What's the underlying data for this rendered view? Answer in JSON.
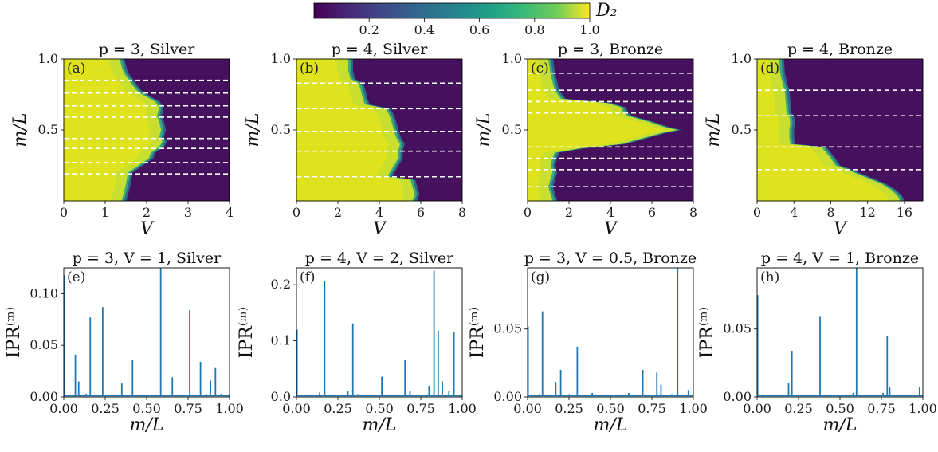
{
  "colorbar": {
    "label": "D₂",
    "ticks": [
      0.2,
      0.4,
      0.6,
      0.8,
      1.0
    ],
    "range": [
      0.0,
      1.0
    ],
    "colormap": "viridis"
  },
  "chart_data": [
    {
      "type": "heatmap",
      "tag": "(a)",
      "title": "p = 3, Silver",
      "xlabel": "V",
      "ylabel": "m/L",
      "xlim": [
        0,
        4
      ],
      "ylim": [
        0,
        1
      ],
      "xticks": [
        0,
        1,
        2,
        3,
        4
      ],
      "yticks": [
        0.5,
        1.0
      ],
      "dashed_lines": [
        0.19,
        0.27,
        0.37,
        0.44,
        0.59,
        0.67,
        0.76,
        0.85
      ],
      "boundary": [
        [
          0,
          1.4
        ],
        [
          0.06,
          1.45
        ],
        [
          0.12,
          1.5
        ],
        [
          0.2,
          1.55
        ],
        [
          0.25,
          1.8
        ],
        [
          0.3,
          2.05
        ],
        [
          0.34,
          2.1
        ],
        [
          0.38,
          2.3
        ],
        [
          0.42,
          2.38
        ],
        [
          0.45,
          2.3
        ],
        [
          0.5,
          2.35
        ],
        [
          0.56,
          2.3
        ],
        [
          0.6,
          2.25
        ],
        [
          0.66,
          2.3
        ],
        [
          0.7,
          2.2
        ],
        [
          0.74,
          1.95
        ],
        [
          0.78,
          1.75
        ],
        [
          0.82,
          1.65
        ],
        [
          0.86,
          1.55
        ],
        [
          0.9,
          1.45
        ],
        [
          0.94,
          1.4
        ],
        [
          1.0,
          1.35
        ]
      ]
    },
    {
      "type": "heatmap",
      "tag": "(b)",
      "title": "p = 4, Silver",
      "xlabel": "V",
      "ylabel": "m/L",
      "xlim": [
        0,
        8
      ],
      "ylim": [
        0,
        1
      ],
      "xticks": [
        0,
        2,
        4,
        6,
        8
      ],
      "yticks": [
        0.5,
        1.0
      ],
      "dashed_lines": [
        0.17,
        0.35,
        0.49,
        0.65,
        0.83
      ],
      "boundary": [
        [
          0,
          5.6
        ],
        [
          0.05,
          5.7
        ],
        [
          0.1,
          5.6
        ],
        [
          0.15,
          5.5
        ],
        [
          0.17,
          4.4
        ],
        [
          0.2,
          4.5
        ],
        [
          0.25,
          4.7
        ],
        [
          0.3,
          4.9
        ],
        [
          0.35,
          4.9
        ],
        [
          0.4,
          5.0
        ],
        [
          0.45,
          4.8
        ],
        [
          0.5,
          4.7
        ],
        [
          0.55,
          4.6
        ],
        [
          0.6,
          4.5
        ],
        [
          0.65,
          4.3
        ],
        [
          0.68,
          3.3
        ],
        [
          0.72,
          3.2
        ],
        [
          0.78,
          3.1
        ],
        [
          0.83,
          3.0
        ],
        [
          0.86,
          2.6
        ],
        [
          0.92,
          2.5
        ],
        [
          1.0,
          2.5
        ]
      ]
    },
    {
      "type": "heatmap",
      "tag": "(c)",
      "title": "p = 3, Bronze",
      "xlabel": "V",
      "ylabel": "m/L",
      "xlim": [
        0,
        8
      ],
      "ylim": [
        0,
        1
      ],
      "xticks": [
        0,
        2,
        4,
        6,
        8
      ],
      "yticks": [
        0.5,
        1.0
      ],
      "dashed_lines": [
        0.1,
        0.22,
        0.3,
        0.38,
        0.62,
        0.7,
        0.78,
        0.9
      ],
      "boundary": [
        [
          0,
          1.2
        ],
        [
          0.05,
          1.1
        ],
        [
          0.1,
          1.0
        ],
        [
          0.15,
          1.1
        ],
        [
          0.2,
          1.2
        ],
        [
          0.25,
          1.1
        ],
        [
          0.3,
          1.2
        ],
        [
          0.34,
          1.3
        ],
        [
          0.37,
          2.5
        ],
        [
          0.4,
          4.5
        ],
        [
          0.44,
          5.5
        ],
        [
          0.48,
          6.5
        ],
        [
          0.5,
          7.2
        ],
        [
          0.52,
          6.6
        ],
        [
          0.56,
          5.8
        ],
        [
          0.6,
          4.8
        ],
        [
          0.63,
          4.6
        ],
        [
          0.66,
          4.5
        ],
        [
          0.69,
          3.8
        ],
        [
          0.72,
          1.6
        ],
        [
          0.78,
          1.3
        ],
        [
          0.84,
          1.2
        ],
        [
          0.9,
          1.1
        ],
        [
          1.0,
          1.0
        ]
      ]
    },
    {
      "type": "heatmap",
      "tag": "(d)",
      "title": "p = 4, Bronze",
      "xlabel": "V",
      "ylabel": "m/L",
      "xlim": [
        0,
        18
      ],
      "ylim": [
        0,
        1
      ],
      "xticks": [
        0,
        4,
        8,
        12,
        16
      ],
      "yticks": [
        0.5,
        1.0
      ],
      "dashed_lines": [
        0.22,
        0.38,
        0.6,
        0.78
      ],
      "boundary": [
        [
          0,
          15.5
        ],
        [
          0.04,
          15.2
        ],
        [
          0.08,
          14.5
        ],
        [
          0.12,
          13.5
        ],
        [
          0.16,
          12
        ],
        [
          0.2,
          10.5
        ],
        [
          0.22,
          9.8
        ],
        [
          0.25,
          8.5
        ],
        [
          0.3,
          8
        ],
        [
          0.34,
          7.5
        ],
        [
          0.38,
          7
        ],
        [
          0.4,
          3.6
        ],
        [
          0.45,
          3.5
        ],
        [
          0.5,
          3.5
        ],
        [
          0.55,
          3.6
        ],
        [
          0.6,
          3.5
        ],
        [
          0.62,
          3.2
        ],
        [
          0.7,
          3.1
        ],
        [
          0.78,
          3.0
        ],
        [
          0.82,
          2.8
        ],
        [
          0.9,
          2.5
        ],
        [
          1.0,
          2.4
        ]
      ]
    },
    {
      "type": "line",
      "tag": "(e)",
      "title": "p = 3, V = 1, Silver",
      "xlabel": "m/L",
      "ylabel": "IPR⁽ᵐ⁾",
      "xlim": [
        0,
        1
      ],
      "ylim": [
        0,
        0.125
      ],
      "xticks": [
        "0.00",
        "0.25",
        "0.50",
        "0.75",
        "1.00"
      ],
      "yticks": [
        "0.00",
        "0.05",
        "0.10"
      ],
      "peaks": [
        [
          0.003,
          0.118
        ],
        [
          0.07,
          0.041
        ],
        [
          0.09,
          0.015
        ],
        [
          0.135,
          0.003
        ],
        [
          0.16,
          0.077
        ],
        [
          0.235,
          0.087
        ],
        [
          0.35,
          0.013
        ],
        [
          0.415,
          0.036
        ],
        [
          0.585,
          0.125
        ],
        [
          0.655,
          0.019
        ],
        [
          0.76,
          0.084
        ],
        [
          0.825,
          0.034
        ],
        [
          0.86,
          0.003
        ],
        [
          0.885,
          0.016
        ],
        [
          0.915,
          0.028
        ],
        [
          0.95,
          0.003
        ]
      ]
    },
    {
      "type": "line",
      "tag": "(f)",
      "title": "p = 4, V = 2, Silver",
      "xlabel": "m/L",
      "ylabel": "IPR⁽ᵐ⁾",
      "xlim": [
        0,
        1
      ],
      "ylim": [
        0,
        0.23
      ],
      "xticks": [
        "0.00",
        "0.25",
        "0.50",
        "0.75",
        "1.00"
      ],
      "yticks": [
        "0.0",
        "0.1",
        "0.2"
      ],
      "peaks": [
        [
          0.003,
          0.12
        ],
        [
          0.14,
          0.008
        ],
        [
          0.17,
          0.207
        ],
        [
          0.31,
          0.01
        ],
        [
          0.34,
          0.131
        ],
        [
          0.37,
          0.005
        ],
        [
          0.515,
          0.036
        ],
        [
          0.655,
          0.066
        ],
        [
          0.685,
          0.01
        ],
        [
          0.8,
          0.02
        ],
        [
          0.83,
          0.225
        ],
        [
          0.855,
          0.118
        ],
        [
          0.88,
          0.028
        ],
        [
          0.92,
          0.01
        ],
        [
          0.95,
          0.116
        ]
      ]
    },
    {
      "type": "line",
      "tag": "(g)",
      "title": "p = 3, V = 0.5, Bronze",
      "xlabel": "m/L",
      "ylabel": "IPR⁽ᵐ⁾",
      "xlim": [
        0,
        1
      ],
      "ylim": [
        0,
        0.095
      ],
      "xticks": [
        "0.00",
        "0.25",
        "0.50",
        "0.75",
        "1.00"
      ],
      "yticks": [
        "0.00",
        "0.05"
      ],
      "peaks": [
        [
          0.003,
          0.052
        ],
        [
          0.07,
          0.002
        ],
        [
          0.09,
          0.063
        ],
        [
          0.17,
          0.011
        ],
        [
          0.2,
          0.02
        ],
        [
          0.25,
          0.002
        ],
        [
          0.3,
          0.037
        ],
        [
          0.39,
          0.003
        ],
        [
          0.61,
          0.003
        ],
        [
          0.695,
          0.02
        ],
        [
          0.78,
          0.018
        ],
        [
          0.805,
          0.009
        ],
        [
          0.87,
          0.002
        ],
        [
          0.905,
          0.095
        ],
        [
          0.97,
          0.005
        ]
      ]
    },
    {
      "type": "line",
      "tag": "(h)",
      "title": "p = 4, V = 1, Bronze",
      "xlabel": "m/L",
      "ylabel": "IPR⁽ᵐ⁾",
      "xlim": [
        0,
        1
      ],
      "ylim": [
        0,
        0.095
      ],
      "xticks": [
        "0.00",
        "0.25",
        "0.50",
        "0.75",
        "1.00"
      ],
      "yticks": [
        "0.00",
        "0.05"
      ],
      "peaks": [
        [
          0.003,
          0.075
        ],
        [
          0.035,
          0.002
        ],
        [
          0.19,
          0.01
        ],
        [
          0.21,
          0.034
        ],
        [
          0.38,
          0.059
        ],
        [
          0.58,
          0.003
        ],
        [
          0.6,
          0.095
        ],
        [
          0.76,
          0.003
        ],
        [
          0.785,
          0.045
        ],
        [
          0.8,
          0.007
        ],
        [
          0.98,
          0.007
        ]
      ]
    }
  ]
}
